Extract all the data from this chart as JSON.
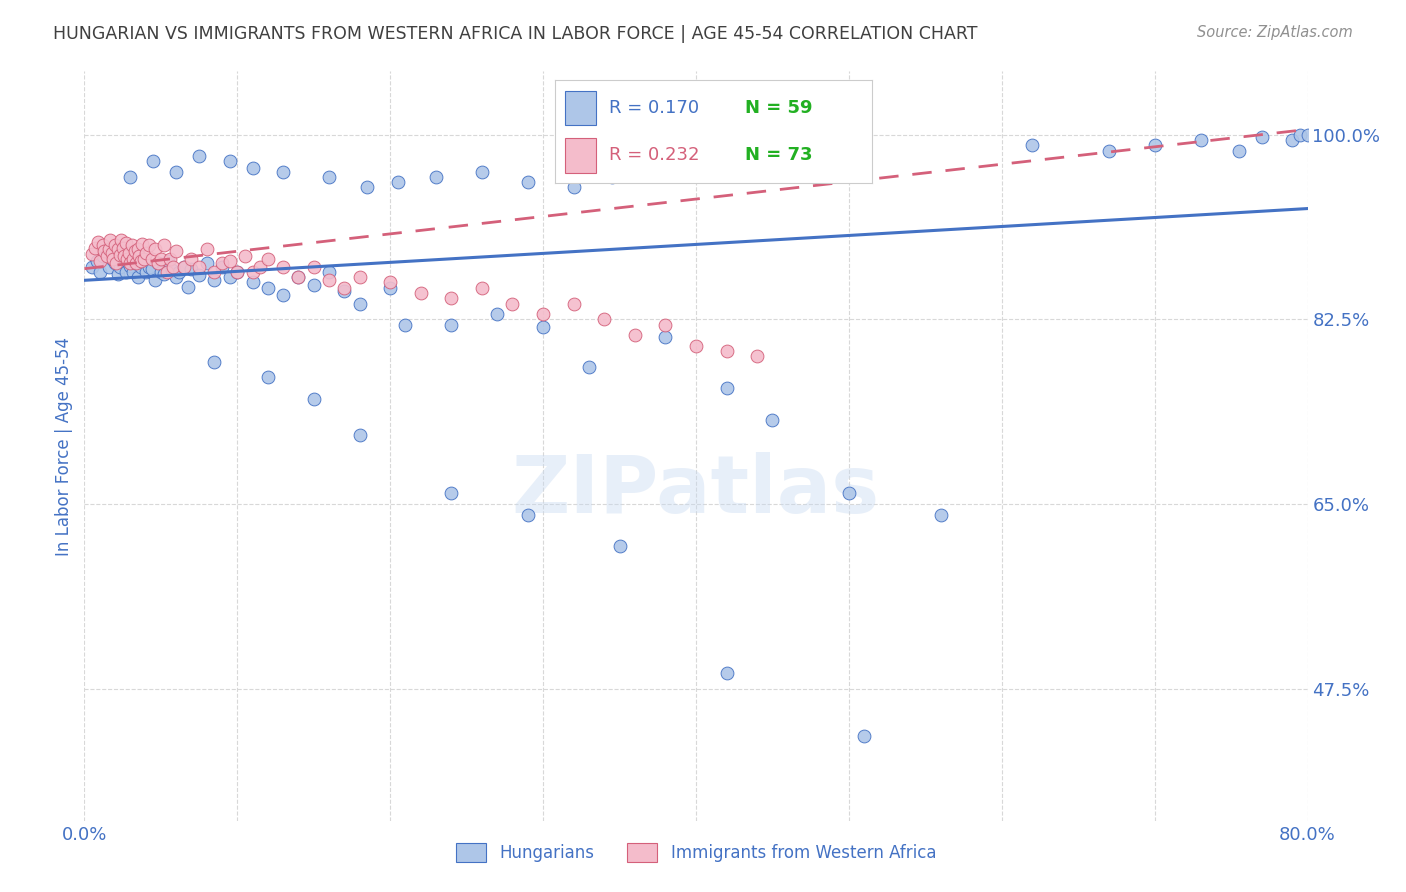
{
  "title": "HUNGARIAN VS IMMIGRANTS FROM WESTERN AFRICA IN LABOR FORCE | AGE 45-54 CORRELATION CHART",
  "source": "Source: ZipAtlas.com",
  "ylabel": "In Labor Force | Age 45-54",
  "ytick_labels": [
    "100.0%",
    "82.5%",
    "65.0%",
    "47.5%"
  ],
  "ytick_values": [
    1.0,
    0.825,
    0.65,
    0.475
  ],
  "xmin": 0.0,
  "xmax": 0.8,
  "ymin": 0.35,
  "ymax": 1.06,
  "blue_color": "#aec6e8",
  "blue_line_color": "#4472c4",
  "pink_color": "#f4bccb",
  "pink_line_color": "#d4607a",
  "legend_label_blue": "Hungarians",
  "legend_label_pink": "Immigrants from Western Africa",
  "watermark": "ZIPatlas",
  "background_color": "#ffffff",
  "grid_color": "#d8d8d8",
  "axis_color": "#4472c4",
  "title_color": "#404040",
  "source_color": "#909090",
  "N_color": "#22b022",
  "blue_scatter_x": [
    0.005,
    0.008,
    0.01,
    0.012,
    0.015,
    0.016,
    0.018,
    0.02,
    0.02,
    0.022,
    0.023,
    0.025,
    0.027,
    0.028,
    0.03,
    0.032,
    0.033,
    0.035,
    0.037,
    0.038,
    0.04,
    0.042,
    0.044,
    0.046,
    0.048,
    0.05,
    0.052,
    0.055,
    0.057,
    0.06,
    0.062,
    0.065,
    0.068,
    0.07,
    0.075,
    0.08,
    0.085,
    0.09,
    0.095,
    0.1,
    0.11,
    0.12,
    0.13,
    0.14,
    0.15,
    0.16,
    0.17,
    0.18,
    0.2,
    0.21,
    0.24,
    0.27,
    0.3,
    0.33,
    0.38,
    0.42,
    0.45,
    0.5,
    0.56
  ],
  "blue_scatter_y": [
    0.875,
    0.88,
    0.87,
    0.885,
    0.89,
    0.875,
    0.882,
    0.878,
    0.892,
    0.868,
    0.875,
    0.888,
    0.87,
    0.88,
    0.876,
    0.87,
    0.878,
    0.865,
    0.875,
    0.882,
    0.87,
    0.875,
    0.873,
    0.862,
    0.878,
    0.87,
    0.868,
    0.88,
    0.872,
    0.865,
    0.87,
    0.875,
    0.856,
    0.873,
    0.867,
    0.878,
    0.862,
    0.875,
    0.865,
    0.87,
    0.86,
    0.855,
    0.848,
    0.865,
    0.858,
    0.87,
    0.852,
    0.84,
    0.855,
    0.82,
    0.82,
    0.83,
    0.818,
    0.78,
    0.808,
    0.76,
    0.73,
    0.66,
    0.64
  ],
  "blue_scatter_x2": [
    0.03,
    0.045,
    0.06,
    0.075,
    0.095,
    0.11,
    0.13,
    0.16,
    0.185,
    0.205,
    0.23,
    0.26,
    0.29,
    0.32,
    0.345,
    0.38,
    0.62,
    0.67,
    0.7,
    0.73,
    0.755,
    0.77,
    0.79,
    0.795,
    0.8
  ],
  "blue_scatter_y2": [
    0.96,
    0.975,
    0.965,
    0.98,
    0.975,
    0.968,
    0.965,
    0.96,
    0.95,
    0.955,
    0.96,
    0.965,
    0.955,
    0.95,
    0.96,
    0.97,
    0.99,
    0.985,
    0.99,
    0.995,
    0.985,
    0.998,
    0.995,
    1.0,
    1.0
  ],
  "blue_outliers_x": [
    0.085,
    0.12,
    0.15,
    0.18,
    0.24,
    0.29,
    0.35,
    0.42,
    0.51
  ],
  "blue_outliers_y": [
    0.785,
    0.77,
    0.75,
    0.715,
    0.66,
    0.64,
    0.61,
    0.49,
    0.43
  ],
  "pink_scatter_x": [
    0.005,
    0.007,
    0.009,
    0.01,
    0.012,
    0.013,
    0.015,
    0.016,
    0.017,
    0.018,
    0.019,
    0.02,
    0.021,
    0.022,
    0.023,
    0.024,
    0.025,
    0.026,
    0.027,
    0.028,
    0.029,
    0.03,
    0.031,
    0.032,
    0.033,
    0.034,
    0.035,
    0.036,
    0.037,
    0.038,
    0.039,
    0.04,
    0.042,
    0.044,
    0.046,
    0.048,
    0.05,
    0.052,
    0.054,
    0.056,
    0.058,
    0.06,
    0.065,
    0.07,
    0.075,
    0.08,
    0.085,
    0.09,
    0.095,
    0.1,
    0.105,
    0.11,
    0.115,
    0.12,
    0.13,
    0.14,
    0.15,
    0.16,
    0.17,
    0.18,
    0.2,
    0.22,
    0.24,
    0.26,
    0.28,
    0.3,
    0.32,
    0.34,
    0.36,
    0.38,
    0.4,
    0.42,
    0.44
  ],
  "pink_scatter_y": [
    0.887,
    0.893,
    0.898,
    0.88,
    0.895,
    0.89,
    0.885,
    0.892,
    0.9,
    0.888,
    0.882,
    0.895,
    0.878,
    0.892,
    0.886,
    0.9,
    0.893,
    0.885,
    0.897,
    0.882,
    0.888,
    0.878,
    0.895,
    0.882,
    0.89,
    0.878,
    0.892,
    0.885,
    0.88,
    0.896,
    0.882,
    0.888,
    0.895,
    0.882,
    0.892,
    0.878,
    0.882,
    0.895,
    0.87,
    0.882,
    0.875,
    0.89,
    0.875,
    0.882,
    0.875,
    0.892,
    0.87,
    0.878,
    0.88,
    0.87,
    0.885,
    0.87,
    0.875,
    0.882,
    0.875,
    0.865,
    0.875,
    0.862,
    0.855,
    0.865,
    0.86,
    0.85,
    0.845,
    0.855,
    0.84,
    0.83,
    0.84,
    0.825,
    0.81,
    0.82,
    0.8,
    0.795,
    0.79
  ],
  "line_blue_x0": 0.0,
  "line_blue_y0": 0.862,
  "line_blue_x1": 0.8,
  "line_blue_y1": 0.93,
  "line_pink_x0": 0.0,
  "line_pink_y0": 0.873,
  "line_pink_x1": 0.8,
  "line_pink_y1": 1.005
}
